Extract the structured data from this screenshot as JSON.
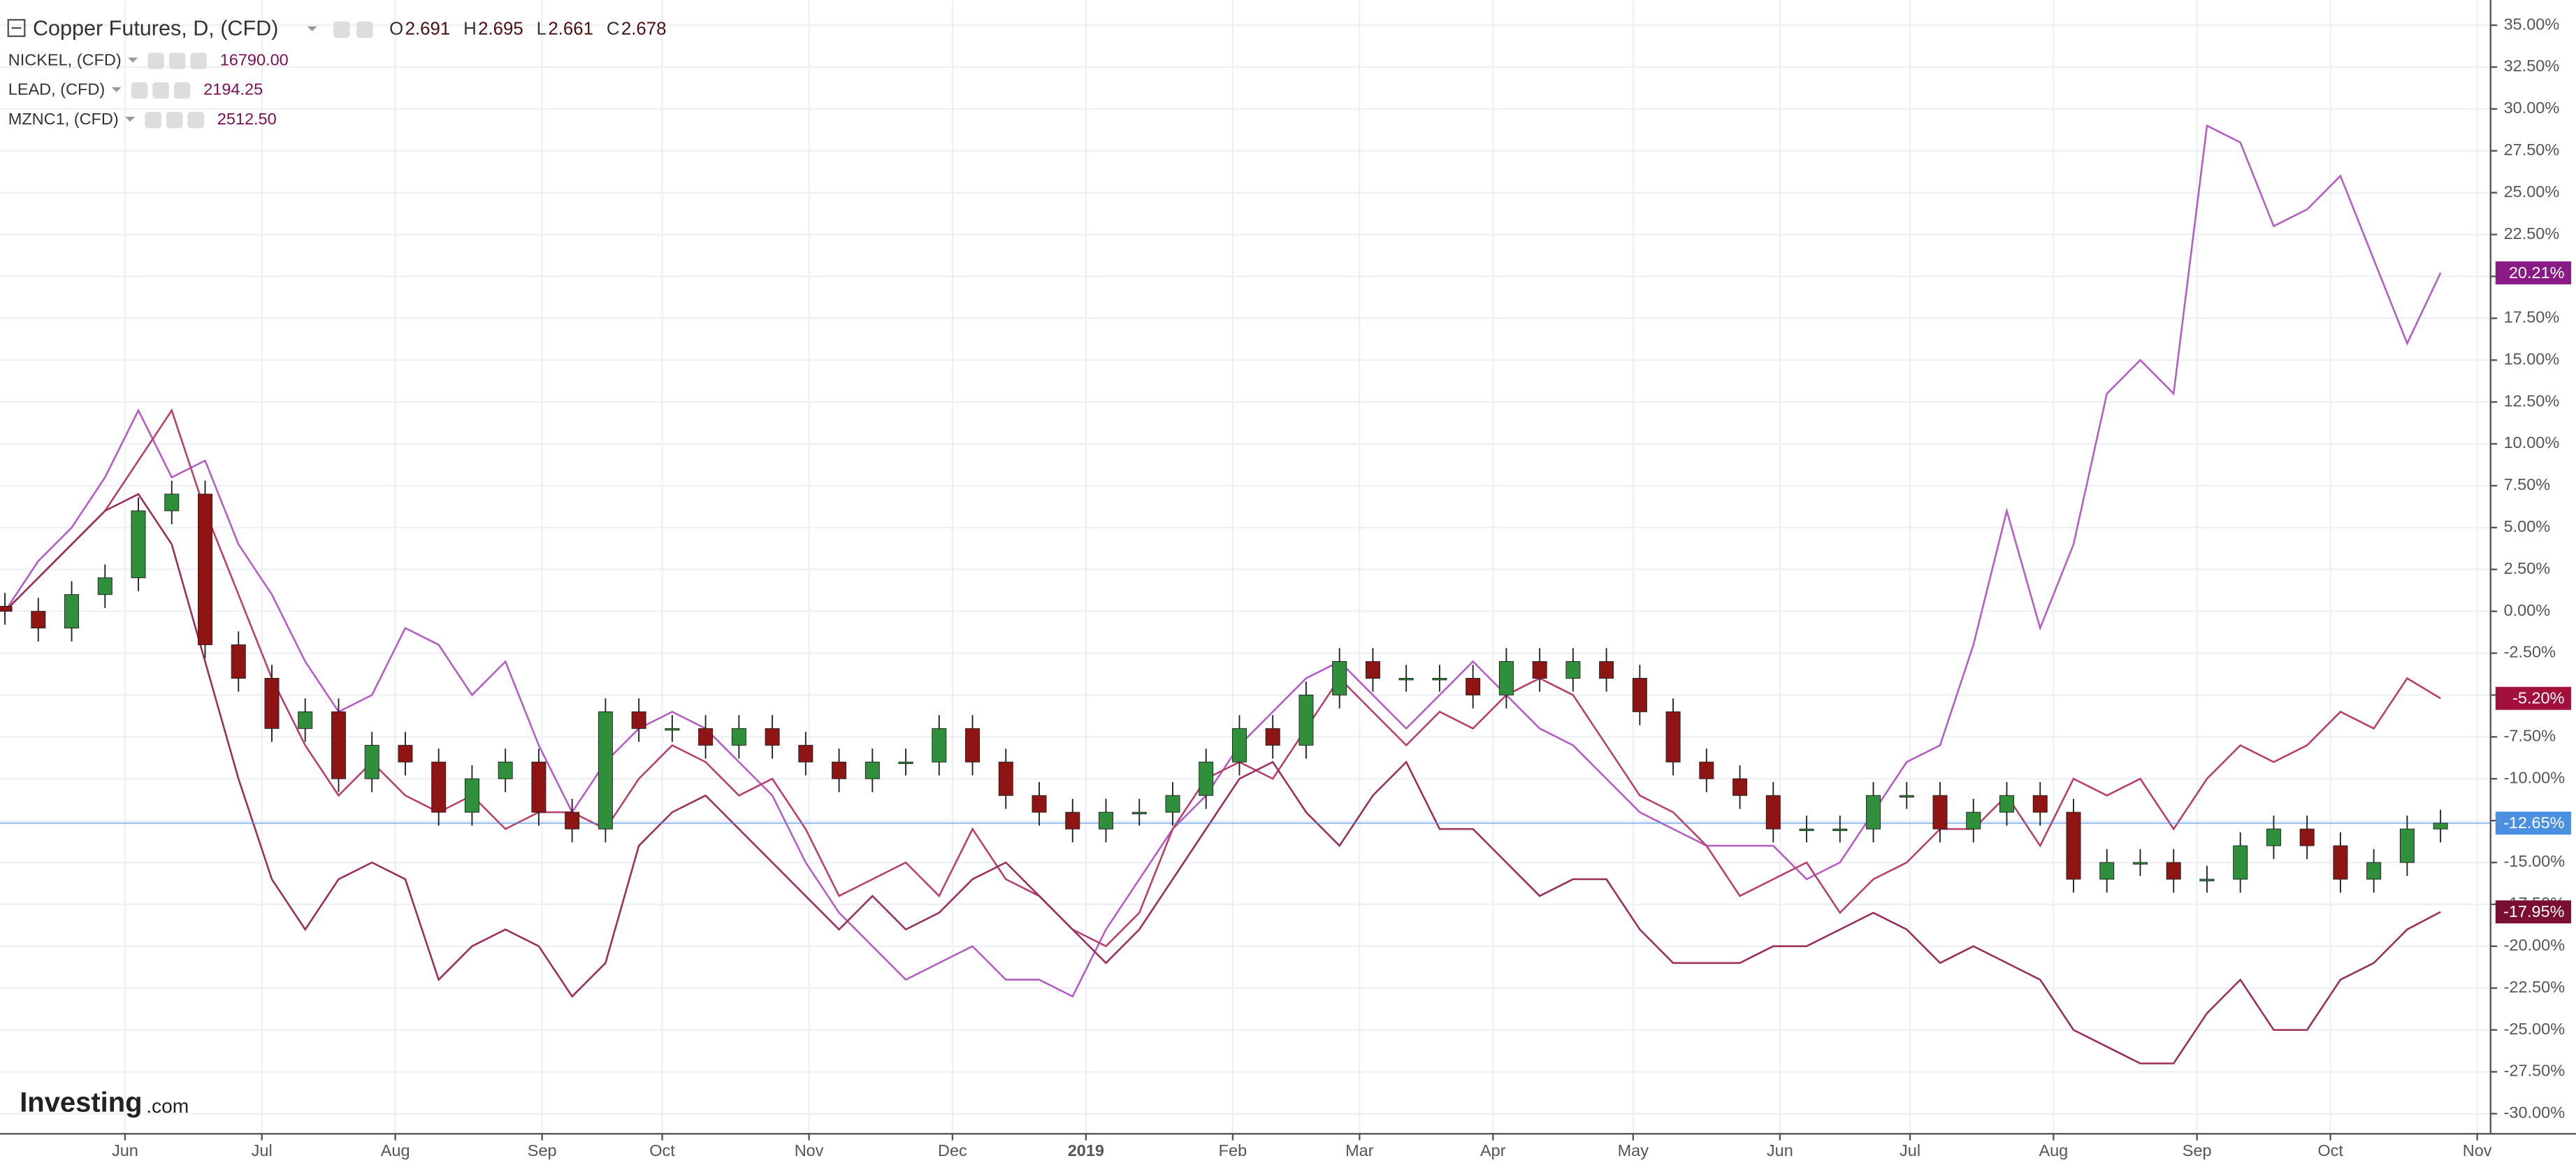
{
  "chart_data": {
    "type": "candlestick",
    "title": "Copper Futures, D, (CFD)",
    "ohlc_legend": [
      {
        "key": "O",
        "value": 2.691
      },
      {
        "key": "H",
        "value": 2.695
      },
      {
        "key": "L",
        "value": 2.661
      },
      {
        "key": "C",
        "value": 2.678
      }
    ],
    "watermark": "Investing",
    "watermark_suffix": ".com",
    "x": [
      0,
      1,
      2,
      3,
      4,
      5,
      6,
      7,
      8,
      9,
      10,
      11,
      12,
      13,
      14,
      15,
      16,
      17,
      18,
      19,
      20,
      21,
      22,
      23,
      24,
      25,
      26,
      27,
      28,
      29,
      30,
      31,
      32,
      33,
      34,
      35,
      36,
      37,
      38,
      39,
      40,
      41,
      42,
      43,
      44,
      45,
      46,
      47,
      48,
      49,
      50,
      51,
      52,
      53,
      54,
      55,
      56,
      57,
      58,
      59,
      60,
      61,
      62,
      63,
      64,
      65,
      66,
      67,
      68,
      69,
      70,
      71,
      72,
      73
    ],
    "open": [
      0.3,
      0,
      -1,
      1,
      2,
      6,
      7,
      -2,
      -4,
      -7,
      -6,
      -10,
      -8,
      -9,
      -12,
      -10,
      -9,
      -12,
      -13,
      -6,
      -7,
      -7,
      -8,
      -7,
      -8,
      -9,
      -10,
      -9,
      -9,
      -7,
      -9,
      -11,
      -12,
      -13,
      -12,
      -12,
      -11,
      -9,
      -7,
      -8,
      -5,
      -3,
      -4,
      -4,
      -4,
      -5,
      -3,
      -4,
      -3,
      -4,
      -6,
      -9,
      -10,
      -11,
      -13,
      -13,
      -13,
      -11,
      -11,
      -13,
      -12,
      -11,
      -12,
      -16,
      -15,
      -15,
      -16,
      -16,
      -14,
      -13,
      -14,
      -16,
      -15,
      -13
    ],
    "high": [
      1.1,
      0.8,
      1.8,
      2.8,
      6.8,
      7.8,
      7.8,
      -1.2,
      -3.2,
      -5.2,
      -5.2,
      -7.2,
      -7.2,
      -8.2,
      -9.2,
      -8.2,
      -8.2,
      -11.2,
      -5.2,
      -5.2,
      -6.2,
      -6.2,
      -6.2,
      -6.2,
      -7.2,
      -8.2,
      -8.2,
      -8.2,
      -6.2,
      -6.2,
      -8.2,
      -10.2,
      -11.2,
      -11.2,
      -11.2,
      -10.2,
      -8.2,
      -6.2,
      -6.2,
      -4.2,
      -2.2,
      -2.2,
      -3.2,
      -3.2,
      -3.2,
      -2.2,
      -2.2,
      -2.2,
      -2.2,
      -3.2,
      -5.2,
      -8.2,
      -9.2,
      -10.2,
      -12.2,
      -12.2,
      -10.2,
      -10.2,
      -10.2,
      -11.2,
      -10.2,
      -10.2,
      -11.2,
      -14.2,
      -14.2,
      -14.2,
      -15.2,
      -13.2,
      -12.2,
      -12.2,
      -13.2,
      -14.2,
      -12.2,
      -11.85
    ],
    "low": [
      -0.8,
      -1.8,
      -1.8,
      0.2,
      1.2,
      5.2,
      -2.8,
      -4.8,
      -7.8,
      -7.8,
      -10.8,
      -10.8,
      -9.8,
      -12.8,
      -12.8,
      -10.8,
      -12.8,
      -13.8,
      -13.8,
      -7.8,
      -7.8,
      -8.8,
      -8.8,
      -8.8,
      -9.8,
      -10.8,
      -10.8,
      -9.8,
      -9.8,
      -9.8,
      -11.8,
      -12.8,
      -13.8,
      -13.8,
      -12.8,
      -12.8,
      -11.8,
      -9.8,
      -8.8,
      -8.8,
      -5.8,
      -4.8,
      -4.8,
      -4.8,
      -5.8,
      -5.8,
      -4.8,
      -4.8,
      -4.8,
      -6.8,
      -9.8,
      -10.8,
      -11.8,
      -13.8,
      -13.8,
      -13.8,
      -13.8,
      -11.8,
      -13.8,
      -13.8,
      -12.8,
      -12.8,
      -16.8,
      -16.8,
      -15.8,
      -16.8,
      -16.8,
      -16.8,
      -14.8,
      -14.8,
      -16.8,
      -16.8,
      -15.8,
      -13.8
    ],
    "close": [
      0,
      -1,
      1,
      2,
      6,
      7,
      -2,
      -4,
      -7,
      -6,
      -10,
      -8,
      -9,
      -12,
      -10,
      -9,
      -12,
      -13,
      -6,
      -7,
      -7,
      -8,
      -7,
      -8,
      -9,
      -10,
      -9,
      -9,
      -7,
      -9,
      -11,
      -12,
      -13,
      -12,
      -12,
      -11,
      -9,
      -7,
      -8,
      -5,
      -3,
      -4,
      -4,
      -4,
      -5,
      -3,
      -4,
      -3,
      -4,
      -6,
      -9,
      -10,
      -11,
      -13,
      -13,
      -13,
      -11,
      -11,
      -13,
      -12,
      -11,
      -12,
      -16,
      -15,
      -15,
      -16,
      -16,
      -14,
      -13,
      -14,
      -16,
      -15,
      -13,
      -12.65
    ],
    "up_color": "#2f8f3a",
    "down_color": "#8f1414",
    "last_tag": {
      "value": -12.65,
      "label": "-12.65%"
    },
    "tag_color": "#4a8fe0",
    "overlays": [
      {
        "name": "NICKEL, (CFD)",
        "last": "16790.00",
        "color": "#b45ec4",
        "tag_color": "#8a1a85",
        "tag": {
          "value": 20.21,
          "label": "20.21%"
        },
        "values": [
          0,
          3,
          5,
          8,
          12,
          8,
          9,
          4,
          1,
          -3,
          -6,
          -5,
          -1,
          -2,
          -5,
          -3,
          -8,
          -12,
          -9,
          -7,
          -6,
          -7,
          -9,
          -11,
          -15,
          -18,
          -20,
          -22,
          -21,
          -20,
          -22,
          -22,
          -23,
          -19,
          -16,
          -13,
          -11,
          -8,
          -6,
          -4,
          -3,
          -5,
          -7,
          -5,
          -3,
          -5,
          -7,
          -8,
          -10,
          -12,
          -13,
          -14,
          -14,
          -14,
          -16,
          -15,
          -12,
          -9,
          -8,
          -2,
          6,
          -1,
          4,
          13,
          15,
          13,
          29,
          28,
          23,
          24,
          26,
          21,
          16,
          20.21
        ]
      },
      {
        "name": "LEAD, (CFD)",
        "last": "2194.25",
        "color": "#b8406a",
        "tag_color": "#a3103c",
        "tag": {
          "value": -5.2,
          "label": "-5.20%"
        },
        "values": [
          0,
          2,
          4,
          6,
          9,
          12,
          6,
          1,
          -4,
          -8,
          -11,
          -9,
          -11,
          -12,
          -11,
          -13,
          -12,
          -12,
          -13,
          -10,
          -8,
          -9,
          -11,
          -10,
          -13,
          -17,
          -16,
          -15,
          -17,
          -13,
          -16,
          -17,
          -19,
          -20,
          -18,
          -13,
          -10,
          -9,
          -10,
          -7,
          -4,
          -6,
          -8,
          -6,
          -7,
          -5,
          -4,
          -5,
          -8,
          -11,
          -12,
          -14,
          -17,
          -16,
          -15,
          -18,
          -16,
          -15,
          -13,
          -13,
          -11,
          -14,
          -10,
          -11,
          -10,
          -13,
          -10,
          -8,
          -9,
          -8,
          -6,
          -7,
          -4,
          -5.2
        ]
      },
      {
        "name": "MZNC1, (CFD)",
        "last": "2512.50",
        "color": "#9a3058",
        "tag_color": "#7a0f33",
        "tag": {
          "value": -17.95,
          "label": "-17.95%"
        },
        "values": [
          0,
          2,
          4,
          6,
          7,
          4,
          -3,
          -10,
          -16,
          -19,
          -16,
          -15,
          -16,
          -22,
          -20,
          -19,
          -20,
          -23,
          -21,
          -14,
          -12,
          -11,
          -13,
          -15,
          -17,
          -19,
          -17,
          -19,
          -18,
          -16,
          -15,
          -17,
          -19,
          -21,
          -19,
          -16,
          -13,
          -10,
          -9,
          -12,
          -14,
          -11,
          -9,
          -13,
          -13,
          -15,
          -17,
          -16,
          -16,
          -19,
          -21,
          -21,
          -21,
          -20,
          -20,
          -19,
          -18,
          -19,
          -21,
          -20,
          -21,
          -22,
          -25,
          -26,
          -27,
          -27,
          -24,
          -22,
          -25,
          -25,
          -22,
          -21,
          -19,
          -17.95
        ]
      }
    ],
    "xlim": [
      0,
      74.5
    ],
    "xticks": [
      {
        "value": 3.6,
        "label": "Jun"
      },
      {
        "value": 7.7,
        "label": "Jul"
      },
      {
        "value": 11.7,
        "label": "Aug"
      },
      {
        "value": 16.1,
        "label": "Sep"
      },
      {
        "value": 19.7,
        "label": "Oct"
      },
      {
        "value": 24.1,
        "label": "Nov"
      },
      {
        "value": 28.4,
        "label": "Dec"
      },
      {
        "value": 32.4,
        "label": "2019"
      },
      {
        "value": 36.8,
        "label": "Feb"
      },
      {
        "value": 40.6,
        "label": "Mar"
      },
      {
        "value": 44.6,
        "label": "Apr"
      },
      {
        "value": 48.8,
        "label": "May"
      },
      {
        "value": 53.2,
        "label": "Jun"
      },
      {
        "value": 57.1,
        "label": "Jul"
      },
      {
        "value": 61.4,
        "label": "Aug"
      },
      {
        "value": 65.7,
        "label": "Sep"
      },
      {
        "value": 69.7,
        "label": "Oct"
      },
      {
        "value": 74.1,
        "label": "Nov"
      }
    ],
    "ylim": [
      -31.2,
      36.5
    ],
    "yticks": [
      {
        "value": -30,
        "label": "-30.00%"
      },
      {
        "value": -27.5,
        "label": "-27.50%"
      },
      {
        "value": -25,
        "label": "-25.00%"
      },
      {
        "value": -22.5,
        "label": "-22.50%"
      },
      {
        "value": -20,
        "label": "-20.00%"
      },
      {
        "value": -17.5,
        "label": "-17.50%"
      },
      {
        "value": -15,
        "label": "-15.00%"
      },
      {
        "value": -12.5,
        "label": "-12.50%"
      },
      {
        "value": -10,
        "label": "-10.00%"
      },
      {
        "value": -7.5,
        "label": "-7.50%"
      },
      {
        "value": -5,
        "label": "-5.00%"
      },
      {
        "value": -2.5,
        "label": "-2.50%"
      },
      {
        "value": 0,
        "label": "0.00%"
      },
      {
        "value": 2.5,
        "label": "2.50%"
      },
      {
        "value": 5,
        "label": "5.00%"
      },
      {
        "value": 7.5,
        "label": "7.50%"
      },
      {
        "value": 10,
        "label": "10.00%"
      },
      {
        "value": 12.5,
        "label": "12.50%"
      },
      {
        "value": 15,
        "label": "15.00%"
      },
      {
        "value": 17.5,
        "label": "17.50%"
      },
      {
        "value": 20,
        "label": "20.00%"
      },
      {
        "value": 22.5,
        "label": "22.50%"
      },
      {
        "value": 25,
        "label": "25.00%"
      },
      {
        "value": 27.5,
        "label": "27.50%"
      },
      {
        "value": 30,
        "label": "30.00%"
      },
      {
        "value": 32.5,
        "label": "32.50%"
      },
      {
        "value": 35,
        "label": "35.00%"
      }
    ],
    "grid": true
  }
}
